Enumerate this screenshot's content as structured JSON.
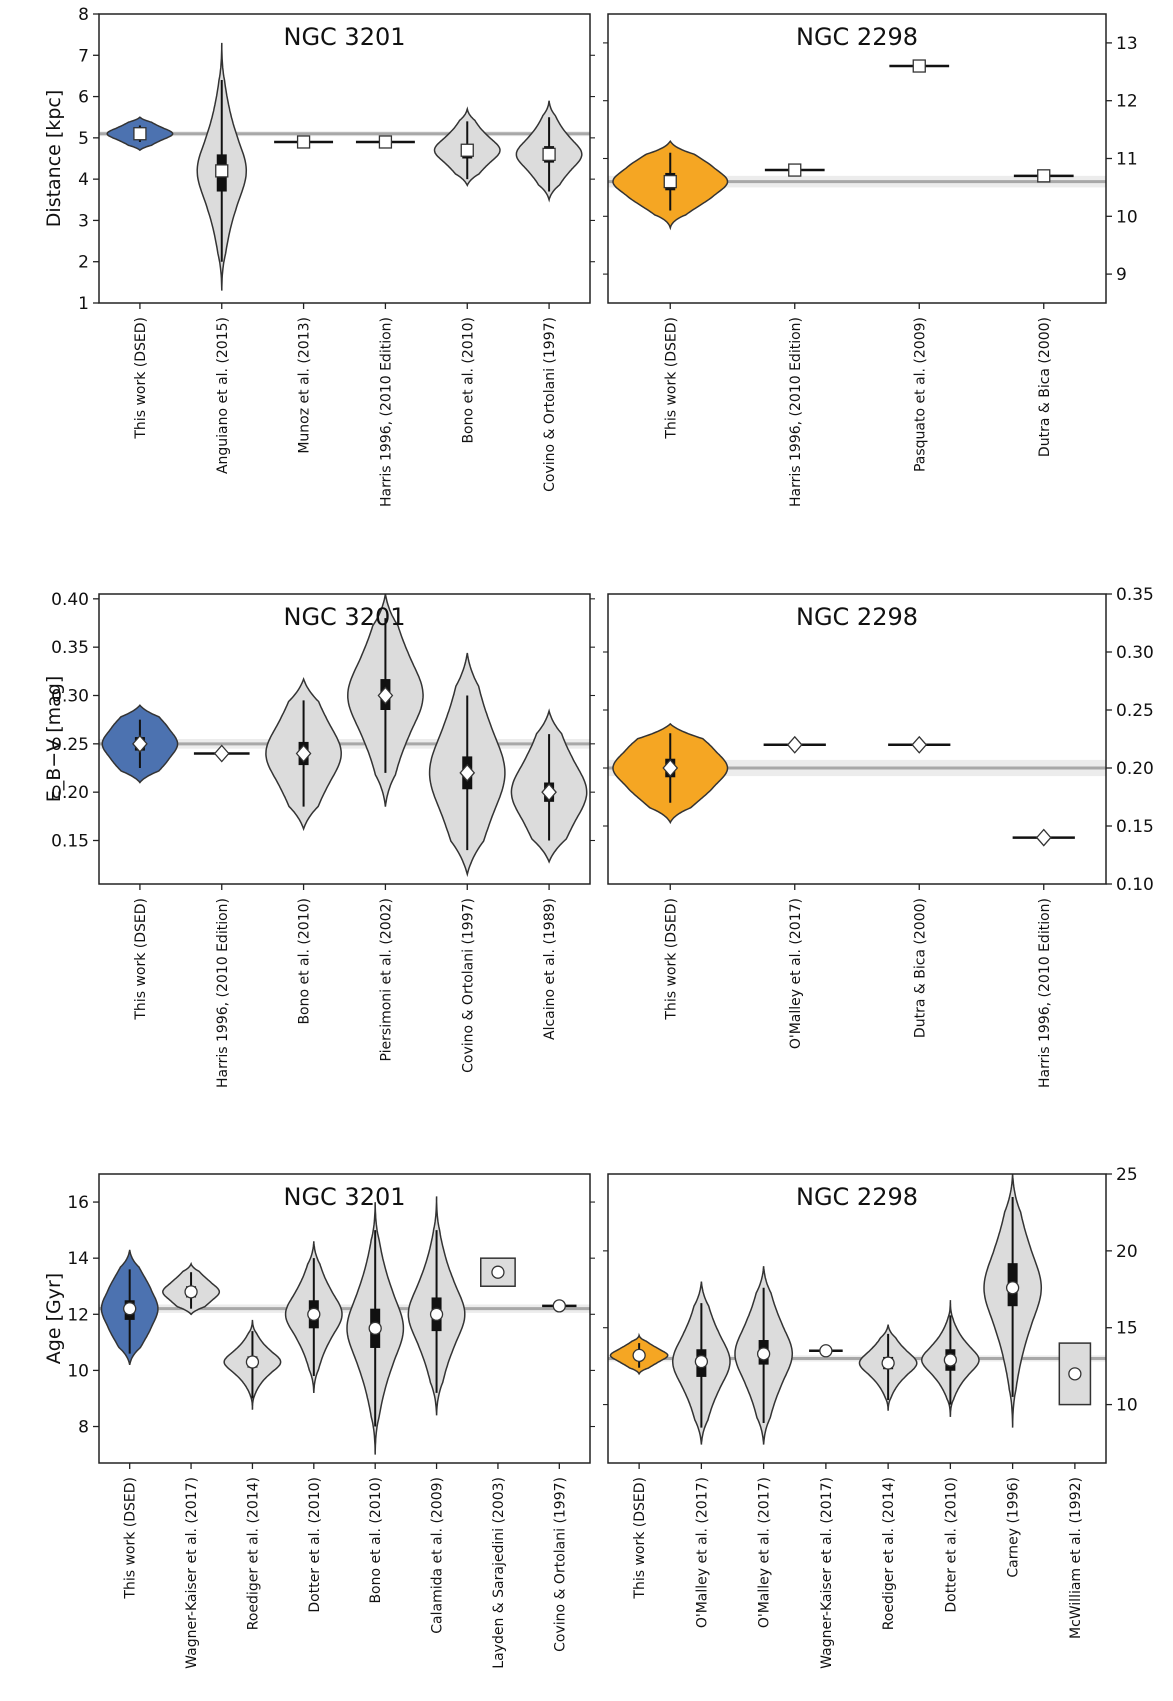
{
  "colors": {
    "ngc3201": "#4c72b0",
    "ngc2298": "#f5a623",
    "literature": "#dcdcdc",
    "reference_line": "#a8a8a8",
    "reference_band": "#ececec",
    "outline": "#333333"
  },
  "chart_data": [
    {
      "type": "violin",
      "title": "NGC 3201",
      "ylabel": "Distance [kpc]",
      "ylim": [
        1,
        8
      ],
      "yticks": [
        1,
        2,
        3,
        4,
        5,
        6,
        7,
        8
      ],
      "yaxis_side": "left",
      "this_work_color": "ngc3201",
      "reference_value": 5.1,
      "reference_band": [
        5.04,
        5.16
      ],
      "categories": [
        "This work (DSED)",
        "Anguiano et al. (2015)",
        "Munoz et al. (2013)",
        "Harris 1996, (2010 Edition)",
        "Bono et al. (2010)",
        "Covino & Ortolani (1997)"
      ],
      "entries": [
        {
          "kind": "violin",
          "value": 5.1,
          "min": 4.7,
          "max": 5.5,
          "halfwidth": 0.4,
          "peak": 0.4,
          "sigma": 0.12,
          "box": [
            5.0,
            5.2
          ],
          "whisker": [
            4.9,
            5.3
          ],
          "marker": "square",
          "color": "ngc3201"
        },
        {
          "kind": "violin",
          "value": 4.2,
          "min": 1.3,
          "max": 7.3,
          "halfwidth": 0.3,
          "peak": 0.4,
          "sigma": 0.6,
          "box": [
            3.7,
            4.6
          ],
          "whisker": [
            2.0,
            6.4
          ],
          "marker": "square",
          "color": "literature"
        },
        {
          "kind": "bar",
          "value": 4.9,
          "marker": "square",
          "halfwidth": 0.36
        },
        {
          "kind": "bar",
          "value": 4.9,
          "marker": "square",
          "halfwidth": 0.36
        },
        {
          "kind": "violin",
          "value": 4.7,
          "min": 3.85,
          "max": 5.7,
          "halfwidth": 0.4,
          "peak": 0.4,
          "sigma": 0.25,
          "box": [
            4.5,
            4.85
          ],
          "whisker": [
            4.0,
            5.4
          ],
          "marker": "square",
          "color": "literature"
        },
        {
          "kind": "violin",
          "value": 4.6,
          "min": 3.5,
          "max": 5.9,
          "halfwidth": 0.4,
          "peak": 0.4,
          "sigma": 0.3,
          "box": [
            4.4,
            4.8
          ],
          "whisker": [
            3.7,
            5.5
          ],
          "marker": "square",
          "color": "literature"
        }
      ]
    },
    {
      "type": "violin",
      "title": "NGC 2298",
      "ylabel": "",
      "ylim": [
        8.5,
        13.5
      ],
      "yticks": [
        9,
        10,
        11,
        12,
        13
      ],
      "yaxis_side": "right",
      "this_work_color": "ngc2298",
      "reference_value": 10.6,
      "reference_band": [
        10.5,
        10.7
      ],
      "categories": [
        "This work (DSED)",
        "Harris 1996, (2010 Edition)",
        "Pasquato et al. (2009)",
        "Dutra & Bica (2000)"
      ],
      "entries": [
        {
          "kind": "violin",
          "value": 10.6,
          "min": 9.8,
          "max": 11.3,
          "halfwidth": 0.46,
          "peak": 0.6,
          "sigma": 0.18,
          "box": [
            10.45,
            10.75
          ],
          "whisker": [
            10.1,
            11.1
          ],
          "marker": "square",
          "color": "ngc2298"
        },
        {
          "kind": "bar",
          "value": 10.8,
          "marker": "square",
          "halfwidth": 0.24
        },
        {
          "kind": "bar",
          "value": 12.6,
          "marker": "square",
          "halfwidth": 0.24
        },
        {
          "kind": "bar",
          "value": 10.7,
          "marker": "square",
          "halfwidth": 0.24
        }
      ]
    },
    {
      "type": "violin",
      "title": "NGC 3201",
      "ylabel": "E_B−V [mag]",
      "ylim": [
        0.105,
        0.405
      ],
      "yticks": [
        0.15,
        0.2,
        0.25,
        0.3,
        0.35,
        0.4
      ],
      "yaxis_side": "left",
      "this_work_color": "ngc3201",
      "reference_value": 0.25,
      "reference_band": [
        0.245,
        0.255
      ],
      "categories": [
        "This work (DSED)",
        "Harris 1996, (2010 Edition)",
        "Bono et al. (2010)",
        "Piersimoni et al. (2002)",
        "Covino & Ortolani (1997)",
        "Alcaino et al. (1989)"
      ],
      "entries": [
        {
          "kind": "violin",
          "value": 0.25,
          "min": 0.21,
          "max": 0.29,
          "halfwidth": 0.46,
          "peak": 0.6,
          "sigma": 0.012,
          "box": [
            0.243,
            0.257
          ],
          "whisker": [
            0.225,
            0.275
          ],
          "marker": "diamond",
          "color": "ngc3201"
        },
        {
          "kind": "bar",
          "value": 0.24,
          "marker": "diamond",
          "halfwidth": 0.34
        },
        {
          "kind": "violin",
          "value": 0.24,
          "min": 0.162,
          "max": 0.317,
          "halfwidth": 0.46,
          "peak": 0.4,
          "sigma": 0.025,
          "box": [
            0.228,
            0.252
          ],
          "whisker": [
            0.185,
            0.295
          ],
          "marker": "diamond",
          "color": "literature"
        },
        {
          "kind": "violin",
          "value": 0.3,
          "min": 0.185,
          "max": 0.405,
          "halfwidth": 0.46,
          "peak": 0.4,
          "sigma": 0.03,
          "box": [
            0.285,
            0.317
          ],
          "whisker": [
            0.22,
            0.38
          ],
          "marker": "diamond",
          "color": "literature"
        },
        {
          "kind": "violin",
          "value": 0.22,
          "min": 0.115,
          "max": 0.344,
          "halfwidth": 0.46,
          "peak": 0.4,
          "sigma": 0.035,
          "box": [
            0.203,
            0.237
          ],
          "whisker": [
            0.14,
            0.3
          ],
          "marker": "diamond",
          "color": "literature"
        },
        {
          "kind": "violin",
          "value": 0.2,
          "min": 0.128,
          "max": 0.284,
          "halfwidth": 0.46,
          "peak": 0.4,
          "sigma": 0.025,
          "box": [
            0.19,
            0.21
          ],
          "whisker": [
            0.15,
            0.26
          ],
          "marker": "diamond",
          "color": "literature"
        }
      ]
    },
    {
      "type": "violin",
      "title": "NGC 2298",
      "ylabel": "",
      "ylim": [
        0.1,
        0.35
      ],
      "yticks": [
        0.1,
        0.15,
        0.2,
        0.25,
        0.3,
        0.35
      ],
      "yaxis_side": "right",
      "this_work_color": "ngc2298",
      "reference_value": 0.2,
      "reference_band": [
        0.193,
        0.207
      ],
      "categories": [
        "This work (DSED)",
        "O'Malley et al. (2017)",
        "Dutra & Bica (2000)",
        "Harris 1996, (2010 Edition)"
      ],
      "entries": [
        {
          "kind": "violin",
          "value": 0.2,
          "min": 0.153,
          "max": 0.238,
          "halfwidth": 0.46,
          "peak": 0.6,
          "sigma": 0.012,
          "box": [
            0.192,
            0.208
          ],
          "whisker": [
            0.17,
            0.23
          ],
          "marker": "diamond",
          "color": "ngc2298"
        },
        {
          "kind": "bar",
          "value": 0.22,
          "marker": "diamond",
          "halfwidth": 0.25
        },
        {
          "kind": "bar",
          "value": 0.22,
          "marker": "diamond",
          "halfwidth": 0.25
        },
        {
          "kind": "bar",
          "value": 0.14,
          "marker": "diamond",
          "halfwidth": 0.25
        }
      ]
    },
    {
      "type": "violin",
      "title": "NGC 3201",
      "ylabel": "Age [Gyr]",
      "ylim": [
        6.7,
        17.0
      ],
      "yticks": [
        8,
        10,
        12,
        14,
        16
      ],
      "yaxis_side": "left",
      "this_work_color": "ngc3201",
      "reference_value": 12.2,
      "reference_band": [
        12.05,
        12.35
      ],
      "categories": [
        "This work (DSED)",
        "Wagner-Kaiser et al. (2017)",
        "Roediger et al. (2014)",
        "Dotter et al. (2010)",
        "Bono et al. (2010)",
        "Calamida et al. (2009)",
        "Layden & Sarajedini (2003)",
        "Covino & Ortolani (1997)"
      ],
      "entries": [
        {
          "kind": "violin",
          "value": 12.2,
          "min": 10.2,
          "max": 14.3,
          "halfwidth": 0.46,
          "peak": 0.6,
          "sigma": 0.5,
          "box": [
            11.8,
            12.5
          ],
          "whisker": [
            10.6,
            13.6
          ],
          "marker": "circle",
          "color": "ngc3201"
        },
        {
          "kind": "violin",
          "value": 12.8,
          "min": 12.0,
          "max": 13.8,
          "halfwidth": 0.46,
          "peak": 0.5,
          "sigma": 0.25,
          "box": [
            12.6,
            13.0
          ],
          "whisker": [
            12.2,
            13.5
          ],
          "marker": "circle",
          "color": "literature"
        },
        {
          "kind": "violin",
          "value": 10.3,
          "min": 8.6,
          "max": 11.8,
          "halfwidth": 0.46,
          "peak": 0.4,
          "sigma": 0.3,
          "box": [
            10.1,
            10.5
          ],
          "whisker": [
            9.0,
            11.4
          ],
          "marker": "circle",
          "color": "literature"
        },
        {
          "kind": "violin",
          "value": 12.0,
          "min": 9.2,
          "max": 14.6,
          "halfwidth": 0.46,
          "peak": 0.4,
          "sigma": 0.6,
          "box": [
            11.5,
            12.5
          ],
          "whisker": [
            9.8,
            14.0
          ],
          "marker": "circle",
          "color": "literature"
        },
        {
          "kind": "violin",
          "value": 11.5,
          "min": 7.0,
          "max": 16.0,
          "halfwidth": 0.46,
          "peak": 0.42,
          "sigma": 0.9,
          "box": [
            10.8,
            12.2
          ],
          "whisker": [
            8.0,
            15.0
          ],
          "marker": "circle",
          "color": "literature"
        },
        {
          "kind": "violin",
          "value": 12.0,
          "min": 8.4,
          "max": 16.2,
          "halfwidth": 0.46,
          "peak": 0.42,
          "sigma": 0.8,
          "box": [
            11.4,
            12.6
          ],
          "whisker": [
            9.2,
            15.0
          ],
          "marker": "circle",
          "color": "literature"
        },
        {
          "kind": "rect",
          "value": 13.5,
          "low": 13.0,
          "high": 14.0,
          "marker": "circle",
          "halfwidth": 0.28
        },
        {
          "kind": "bar",
          "value": 12.3,
          "marker": "circle",
          "halfwidth": 0.28
        }
      ]
    },
    {
      "type": "violin",
      "title": "NGC 2298",
      "ylabel": "",
      "ylim": [
        6.2,
        25
      ],
      "yticks": [
        10,
        15,
        20,
        25
      ],
      "yaxis_side": "right",
      "this_work_color": "ngc2298",
      "reference_value": 13.0,
      "reference_band": [
        12.8,
        13.2
      ],
      "categories": [
        "This work (DSED)",
        "O'Malley et al. (2017)",
        "O'Malley et al. (2017)",
        "Wagner-Kaiser et al. (2017)",
        "Roediger et al. (2014)",
        "Dotter et al. (2010)",
        "Carney (1996)",
        "McWilliam et al. (1992)"
      ],
      "entries": [
        {
          "kind": "violin",
          "value": 13.2,
          "min": 12.0,
          "max": 14.5,
          "halfwidth": 0.46,
          "peak": 0.5,
          "sigma": 0.3,
          "box": [
            12.95,
            13.45
          ],
          "whisker": [
            12.4,
            14.0
          ],
          "marker": "circle",
          "color": "ngc2298"
        },
        {
          "kind": "violin",
          "value": 12.8,
          "min": 7.4,
          "max": 18.0,
          "halfwidth": 0.46,
          "peak": 0.4,
          "sigma": 1.3,
          "box": [
            11.8,
            13.6
          ],
          "whisker": [
            8.5,
            16.6
          ],
          "marker": "circle",
          "color": "literature"
        },
        {
          "kind": "violin",
          "value": 13.3,
          "min": 7.4,
          "max": 19.0,
          "halfwidth": 0.46,
          "peak": 0.42,
          "sigma": 1.4,
          "box": [
            12.6,
            14.2
          ],
          "whisker": [
            8.8,
            17.6
          ],
          "marker": "circle",
          "color": "literature"
        },
        {
          "kind": "bar",
          "value": 13.5,
          "marker": "circle",
          "halfwidth": 0.27
        },
        {
          "kind": "violin",
          "value": 12.7,
          "min": 9.6,
          "max": 15.2,
          "halfwidth": 0.46,
          "peak": 0.4,
          "sigma": 0.6,
          "box": [
            12.3,
            13.1
          ],
          "whisker": [
            10.3,
            14.6
          ],
          "marker": "circle",
          "color": "literature"
        },
        {
          "kind": "violin",
          "value": 12.9,
          "min": 9.2,
          "max": 16.8,
          "halfwidth": 0.46,
          "peak": 0.4,
          "sigma": 0.7,
          "box": [
            12.2,
            13.6
          ],
          "whisker": [
            10.0,
            15.8
          ],
          "marker": "circle",
          "color": "literature"
        },
        {
          "kind": "violin",
          "value": 17.6,
          "min": 8.5,
          "max": 25.0,
          "halfwidth": 0.46,
          "peak": 0.42,
          "sigma": 1.8,
          "box": [
            16.4,
            19.2
          ],
          "whisker": [
            10.5,
            23.5
          ],
          "marker": "circle",
          "color": "literature"
        },
        {
          "kind": "rect",
          "value": 12.0,
          "low": 10.0,
          "high": 14.0,
          "marker": "circle",
          "halfwidth": 0.25
        }
      ]
    }
  ]
}
